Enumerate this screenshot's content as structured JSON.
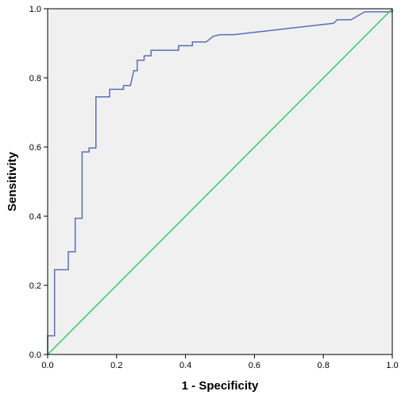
{
  "chart_data": {
    "type": "line",
    "title": "",
    "xlabel": "1 - Specificity",
    "ylabel": "Sensitivity",
    "xlim": [
      0,
      1
    ],
    "ylim": [
      0,
      1
    ],
    "x_ticks": [
      "0.0",
      "0.2",
      "0.4",
      "0.6",
      "0.8",
      "1.0"
    ],
    "y_ticks": [
      "0.0",
      "0.2",
      "0.4",
      "0.6",
      "0.8",
      "1.0"
    ],
    "grid": false,
    "background": "#f0f0f0",
    "series": [
      {
        "color": "#5a6fb5",
        "points": [
          [
            0.0,
            0.0
          ],
          [
            0.0,
            0.054
          ],
          [
            0.02,
            0.054
          ],
          [
            0.02,
            0.245
          ],
          [
            0.06,
            0.245
          ],
          [
            0.06,
            0.297
          ],
          [
            0.08,
            0.297
          ],
          [
            0.08,
            0.394
          ],
          [
            0.1,
            0.394
          ],
          [
            0.1,
            0.586
          ],
          [
            0.12,
            0.586
          ],
          [
            0.12,
            0.597
          ],
          [
            0.14,
            0.597
          ],
          [
            0.14,
            0.745
          ],
          [
            0.18,
            0.745
          ],
          [
            0.18,
            0.767
          ],
          [
            0.22,
            0.767
          ],
          [
            0.22,
            0.778
          ],
          [
            0.24,
            0.778
          ],
          [
            0.25,
            0.821
          ],
          [
            0.26,
            0.821
          ],
          [
            0.26,
            0.851
          ],
          [
            0.28,
            0.851
          ],
          [
            0.28,
            0.864
          ],
          [
            0.3,
            0.864
          ],
          [
            0.3,
            0.88
          ],
          [
            0.32,
            0.88
          ],
          [
            0.38,
            0.88
          ],
          [
            0.38,
            0.893
          ],
          [
            0.42,
            0.893
          ],
          [
            0.42,
            0.904
          ],
          [
            0.46,
            0.904
          ],
          [
            0.48,
            0.92
          ],
          [
            0.5,
            0.925
          ],
          [
            0.54,
            0.925
          ],
          [
            0.83,
            0.958
          ],
          [
            0.84,
            0.968
          ],
          [
            0.88,
            0.968
          ],
          [
            0.92,
            0.991
          ],
          [
            1.0,
            0.991
          ],
          [
            1.0,
            1.0
          ]
        ]
      },
      {
        "color": "#33cc66",
        "points": [
          [
            0,
            0
          ],
          [
            1,
            1
          ]
        ]
      }
    ]
  }
}
